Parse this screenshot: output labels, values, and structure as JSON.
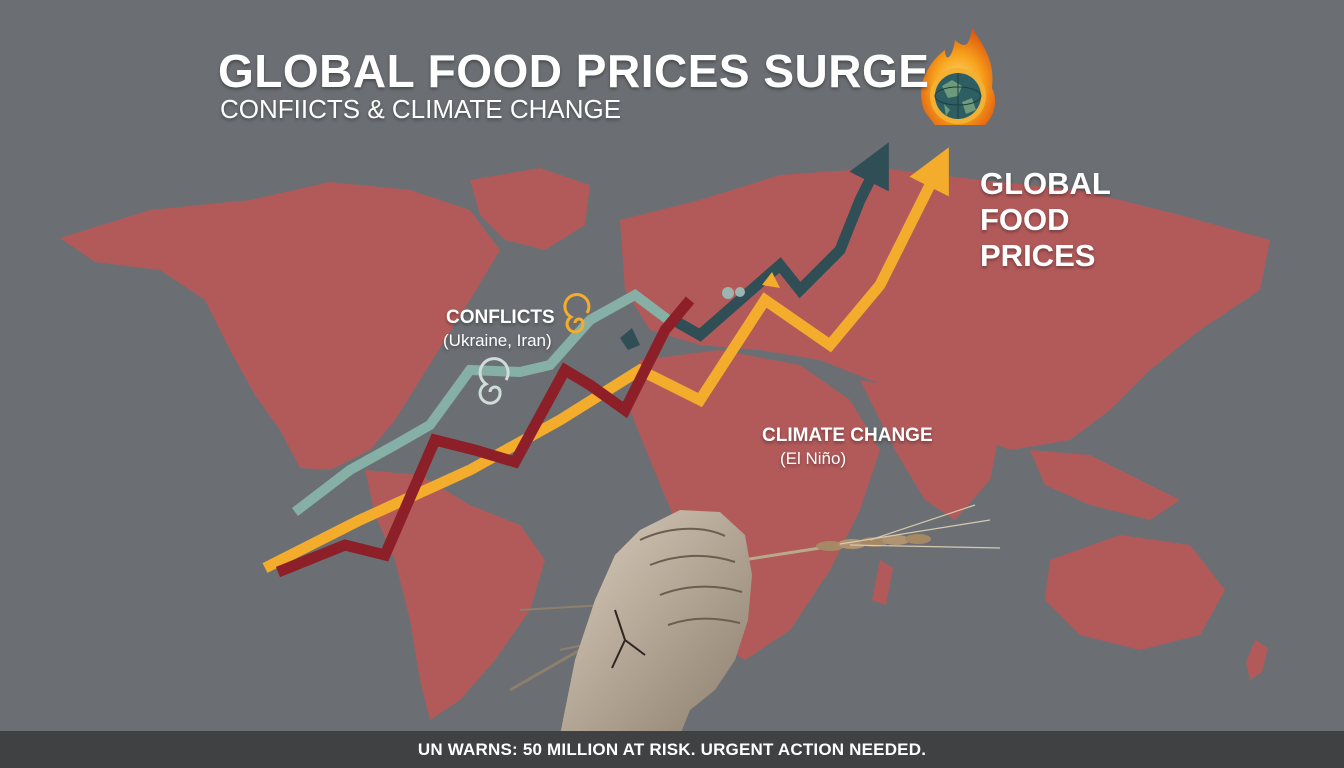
{
  "header": {
    "title": "GLOBAL FOOD PRICES SURGE",
    "subtitle": "CONFIICTS & CLIMATE CHANGE"
  },
  "side_label": {
    "lines": [
      "GLOBAL",
      "FOOD",
      "PRICES"
    ]
  },
  "annotations": {
    "conflicts": {
      "title": "CONFLICTS",
      "subtitle": "(Ukraine, Iran)"
    },
    "climate": {
      "title": "CLIMATE CHANGE",
      "subtitle": "(El Niño)"
    }
  },
  "footer": {
    "text": "UN WARNS: 50 MILLION AT RISK. URGENT ACTION NEEDED."
  },
  "icons": [
    "burning-globe-icon",
    "storm-spiral-icon",
    "hurricane-icon",
    "wheat-stalk-icon",
    "fist-icon",
    "world-map-icon"
  ],
  "colors": {
    "background": "#6b6f73",
    "map": "#b25a5a",
    "teal_arrow": "#2f4e55",
    "mint_line": "#86b0a6",
    "red_line": "#8c1f27",
    "yellow_arrow": "#f4ac2c",
    "flame": "#f39a1e",
    "footer": "#3f4143"
  }
}
